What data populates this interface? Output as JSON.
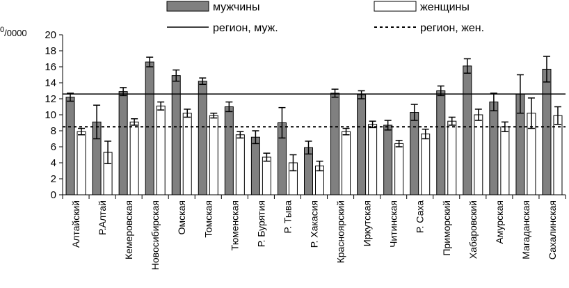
{
  "chart_data": {
    "type": "bar",
    "title": "",
    "ylabel_unit": {
      "superscript": "0",
      "rest": "/0000"
    },
    "ylim": [
      0,
      20
    ],
    "yticks": [
      "0",
      "2",
      "4",
      "6",
      "8",
      "10",
      "12",
      "14",
      "16",
      "18",
      "20"
    ],
    "categories": [
      "Алтайский",
      "Р.Алтай",
      "Кемеровская",
      "Новосибирская",
      "Омская",
      "Томская",
      "Тюменская",
      "Р. Бурятия",
      "Р. Тыва",
      "Р. Хакасия",
      "Красноярский",
      "Иркутская",
      "Читинская",
      "Р. Саха",
      "Приморский",
      "Хабаровский",
      "Амурская",
      "Магаданская",
      "Сахалинская"
    ],
    "series": [
      {
        "name": "мужчины",
        "color": "#808080",
        "values": [
          12.2,
          9.1,
          12.9,
          16.6,
          14.9,
          14.2,
          11.0,
          7.2,
          9.0,
          5.9,
          12.7,
          12.5,
          8.7,
          10.3,
          13.0,
          16.1,
          11.6,
          12.6,
          15.7
        ],
        "errors": [
          0.5,
          2.1,
          0.5,
          0.6,
          0.7,
          0.4,
          0.6,
          0.8,
          1.9,
          0.8,
          0.5,
          0.5,
          0.6,
          1.0,
          0.6,
          0.9,
          1.1,
          2.4,
          1.6
        ]
      },
      {
        "name": "женщины",
        "color": "#ffffff",
        "values": [
          7.9,
          5.3,
          9.1,
          11.1,
          10.2,
          9.9,
          7.5,
          4.7,
          4.0,
          3.6,
          7.9,
          8.8,
          6.4,
          7.6,
          9.2,
          10.0,
          8.5,
          10.2,
          9.9
        ],
        "errors": [
          0.4,
          1.4,
          0.4,
          0.5,
          0.5,
          0.3,
          0.4,
          0.5,
          1.0,
          0.6,
          0.4,
          0.4,
          0.4,
          0.6,
          0.5,
          0.7,
          0.6,
          1.9,
          1.1
        ]
      }
    ],
    "reference_lines": [
      {
        "name": "регион, муж.",
        "value": 12.6,
        "style": "solid"
      },
      {
        "name": "регион, жен.",
        "value": 8.5,
        "style": "dashed"
      }
    ],
    "legend_position": "top"
  }
}
